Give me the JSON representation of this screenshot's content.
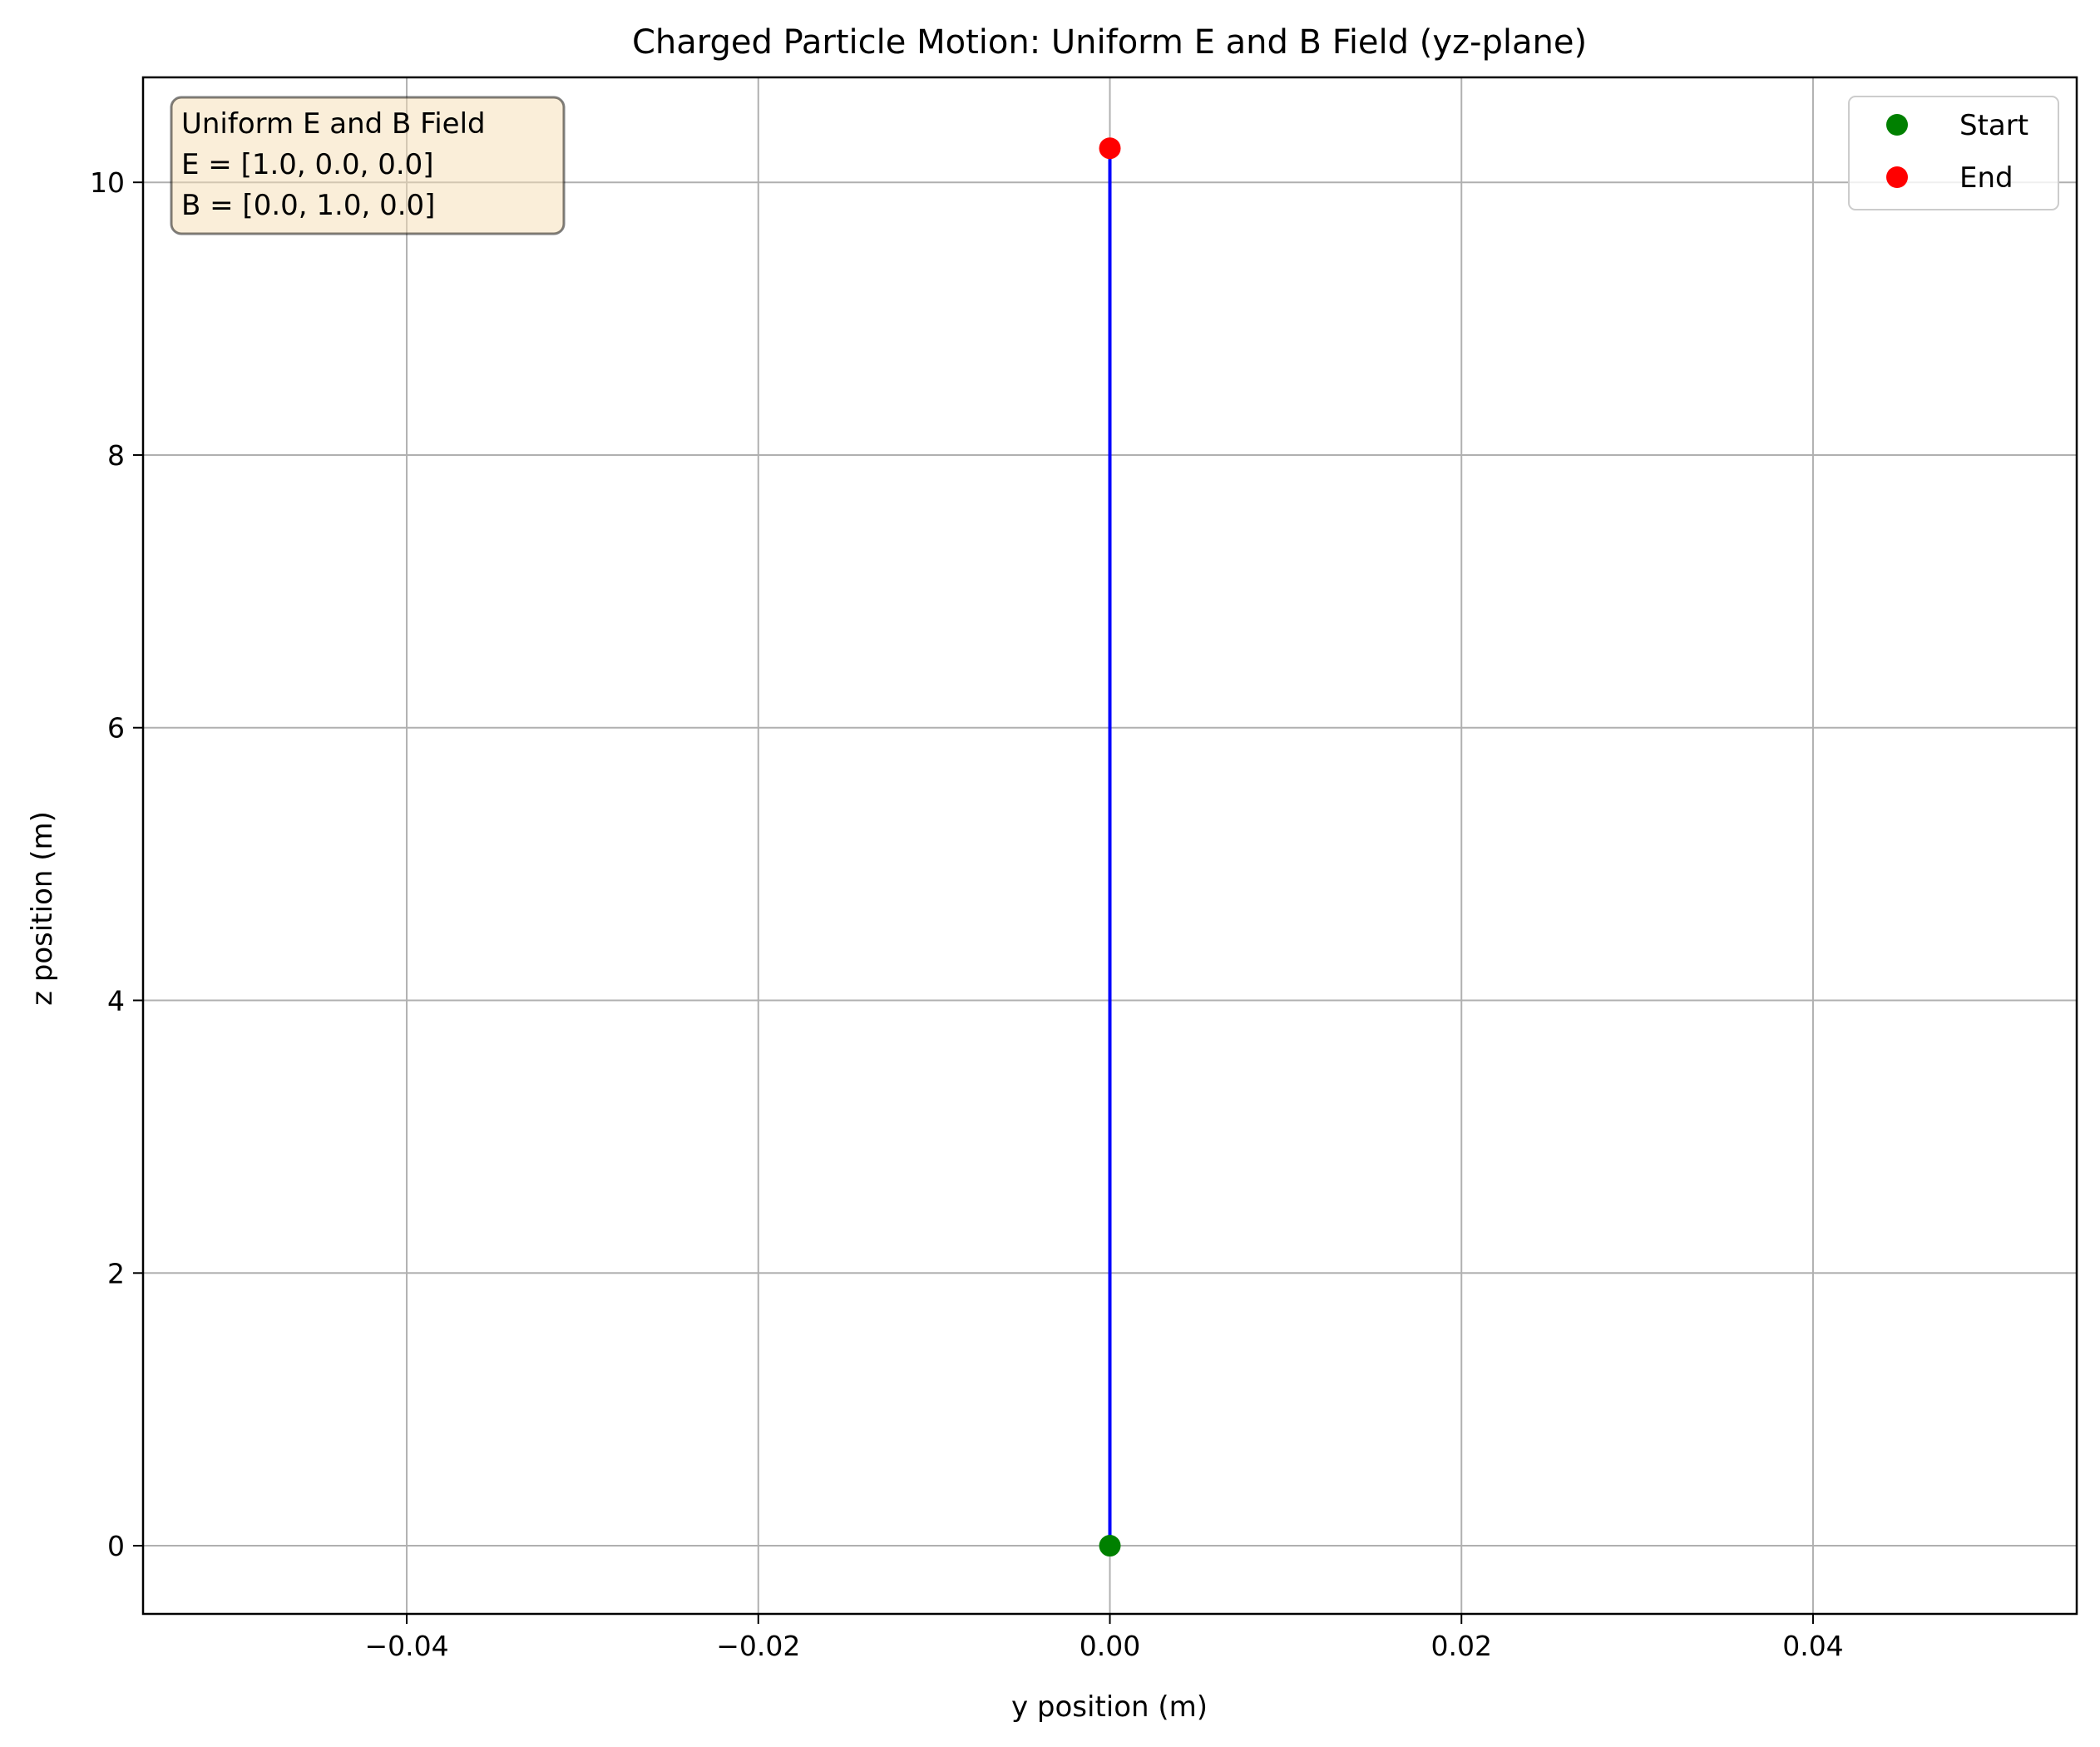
{
  "chart_data": {
    "type": "line",
    "title": "Charged Particle Motion: Uniform E and B Field (yz-plane)",
    "xlabel": "y position (m)",
    "ylabel": "z position (m)",
    "xlim": [
      -0.055,
      0.055
    ],
    "ylim": [
      -0.5,
      10.77
    ],
    "xticks": [
      -0.04,
      -0.02,
      0.0,
      0.02,
      0.04
    ],
    "xtick_labels": [
      "−0.04",
      "−0.02",
      "0.00",
      "0.02",
      "0.04"
    ],
    "yticks": [
      0,
      2,
      4,
      6,
      8,
      10
    ],
    "ytick_labels": [
      "0",
      "2",
      "4",
      "6",
      "8",
      "10"
    ],
    "grid": true,
    "legend_position": "top-right",
    "series": [
      {
        "type": "line",
        "color": "#0000ff",
        "x": [
          0.0,
          0.0
        ],
        "y": [
          0.0,
          10.25
        ]
      },
      {
        "name": "Start",
        "type": "marker",
        "color": "#008000",
        "x": [
          0.0
        ],
        "y": [
          0.0
        ]
      },
      {
        "name": "End",
        "type": "marker",
        "color": "#ff0000",
        "x": [
          0.0
        ],
        "y": [
          10.25
        ]
      }
    ],
    "annotation": {
      "lines": [
        "Uniform E and B Field",
        "E = [1.0, 0.0, 0.0]",
        "B = [0.0, 1.0, 0.0]"
      ],
      "position": "top-left",
      "background": "#f5deb3"
    }
  }
}
